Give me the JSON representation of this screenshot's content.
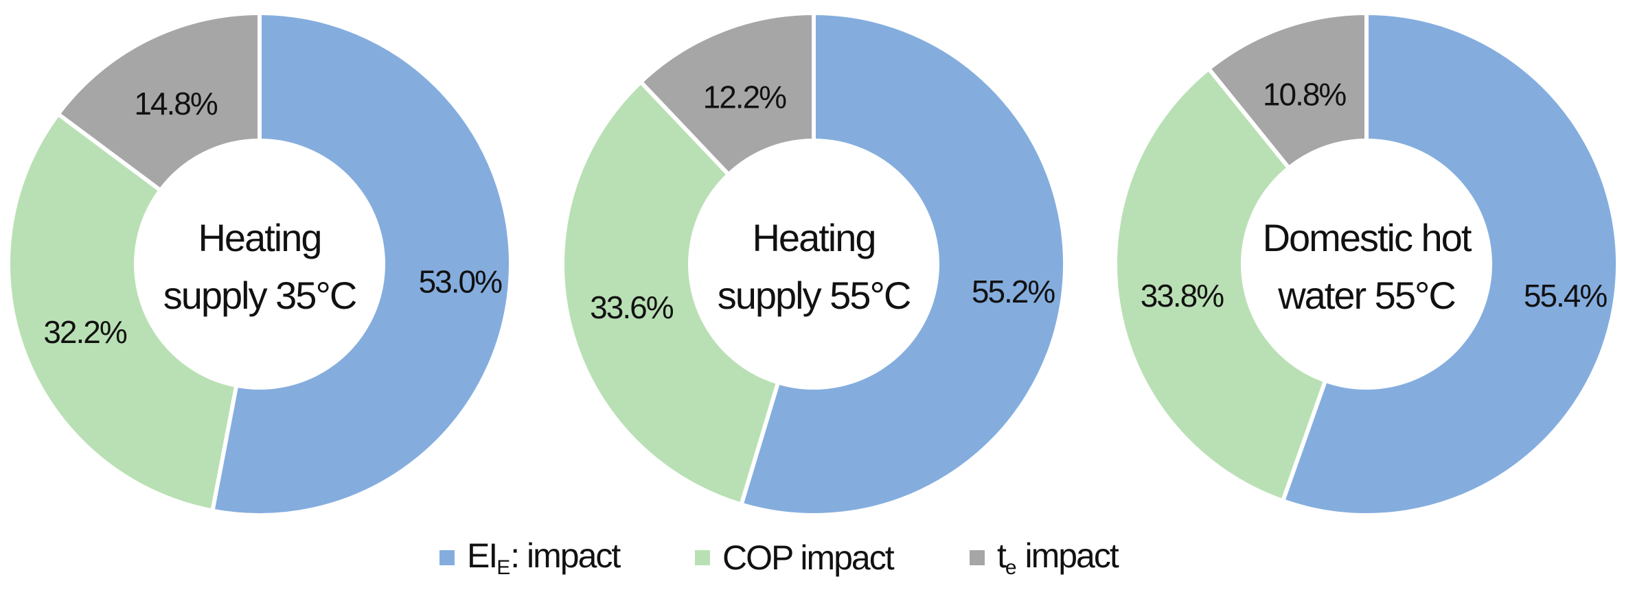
{
  "chart_data": [
    {
      "type": "donut",
      "center_label": [
        "Heating",
        "supply 35°C"
      ],
      "series": [
        {
          "name": "EI_E impact",
          "value": 53.0,
          "label": "53.0%"
        },
        {
          "name": "COP impact",
          "value": 32.2,
          "label": "32.2%"
        },
        {
          "name": "t_e impact",
          "value": 14.8,
          "label": "14.8%"
        }
      ]
    },
    {
      "type": "donut",
      "center_label": [
        "Heating",
        "supply 55°C"
      ],
      "series": [
        {
          "name": "EI_E impact",
          "value": 55.2,
          "label": "55.2%"
        },
        {
          "name": "COP impact",
          "value": 33.6,
          "label": "33.6%"
        },
        {
          "name": "t_e impact",
          "value": 12.2,
          "label": "12.2%"
        }
      ]
    },
    {
      "type": "donut",
      "center_label": [
        "Domestic hot",
        "water 55°C"
      ],
      "series": [
        {
          "name": "EI_E impact",
          "value": 55.4,
          "label": "55.4%"
        },
        {
          "name": "COP impact",
          "value": 33.8,
          "label": "33.8%"
        },
        {
          "name": "t_e impact",
          "value": 10.8,
          "label": "10.8%"
        }
      ]
    }
  ],
  "legend": {
    "placement": "bottom",
    "items": [
      {
        "main": "EI",
        "sub": "E",
        "suffix": ": impact",
        "color": "#84ADDE"
      },
      {
        "main": "COP impact",
        "sub": "",
        "suffix": "",
        "color": "#B9E0B4"
      },
      {
        "main": "t",
        "sub": "e",
        "suffix": " impact",
        "color": "#A6A6A6"
      }
    ]
  },
  "colors": {
    "ei_impact": "#84ADDE",
    "cop_impact": "#B9E0B4",
    "te_impact": "#A6A6A6"
  }
}
